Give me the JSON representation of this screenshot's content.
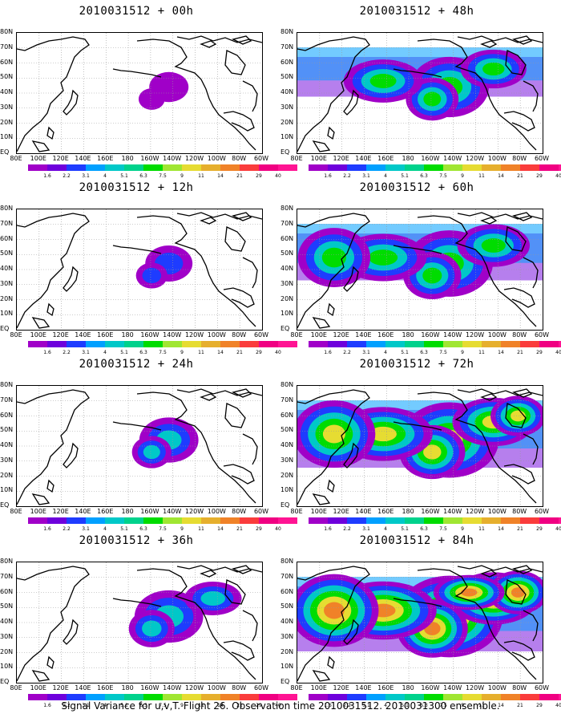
{
  "panels": [
    {
      "title": "2010031512 + 00h",
      "level": 0.05
    },
    {
      "title": "2010031512 + 48h",
      "level": 0.55
    },
    {
      "title": "2010031512 + 12h",
      "level": 0.15
    },
    {
      "title": "2010031512 + 60h",
      "level": 0.65
    },
    {
      "title": "2010031512 + 24h",
      "level": 0.3
    },
    {
      "title": "2010031512 + 72h",
      "level": 0.8
    },
    {
      "title": "2010031512 + 36h",
      "level": 0.42
    },
    {
      "title": "2010031512 + 84h",
      "level": 0.9
    }
  ],
  "y_labels": [
    "80N",
    "70N",
    "60N",
    "50N",
    "40N",
    "30N",
    "20N",
    "10N",
    "EQ"
  ],
  "x_labels": [
    "80E",
    "100E",
    "120E",
    "140E",
    "160E",
    "180",
    "160W",
    "140W",
    "120W",
    "100W",
    "80W",
    "60W"
  ],
  "colorbar": {
    "labels": [
      "1.6",
      "2.2",
      "3.1",
      "4",
      "5.1",
      "6.3",
      "7.5",
      "9",
      "11",
      "14",
      "21",
      "29",
      "40"
    ],
    "colors": [
      "#a000c8",
      "#6e00dc",
      "#1e3cff",
      "#00a0ff",
      "#00c8c8",
      "#00d28c",
      "#00dc00",
      "#a0e632",
      "#e6dc32",
      "#e6af2d",
      "#f08228",
      "#fa3c3c",
      "#f00082"
    ]
  },
  "footer": "Signal Variance for u,v,T. Flight 26. Observation time 2010031512. 2010031300 ensemble."
}
